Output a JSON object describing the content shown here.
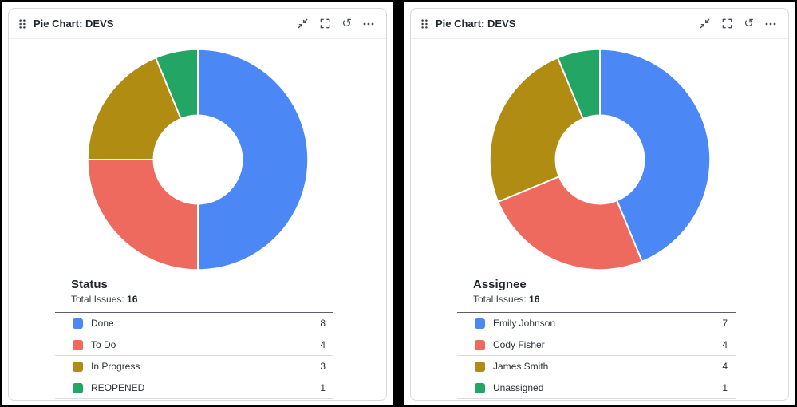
{
  "widgets": [
    {
      "title": "Pie Chart: DEVS",
      "icons": [
        "drag-handle",
        "collapse",
        "fullscreen",
        "refresh",
        "more"
      ]
    },
    {
      "title": "Pie Chart: DEVS",
      "icons": [
        "drag-handle",
        "collapse",
        "fullscreen",
        "refresh",
        "more"
      ]
    }
  ],
  "chart_data": [
    {
      "type": "pie",
      "style": "donut",
      "title": "Status",
      "total_label": "Total Issues:",
      "total": 16,
      "categories": [
        "Done",
        "To Do",
        "In Progress",
        "REOPENED"
      ],
      "values": [
        8,
        4,
        3,
        1
      ],
      "colors": [
        "#4B87F5",
        "#EE6A5F",
        "#B08C13",
        "#23A566"
      ],
      "start_angle": "top",
      "direction": "clockwise",
      "legend_position": "bottom"
    },
    {
      "type": "pie",
      "style": "donut",
      "title": "Assignee",
      "total_label": "Total Issues:",
      "total": 16,
      "categories": [
        "Emily Johnson",
        "Cody Fisher",
        "James Smith",
        "Unassigned"
      ],
      "values": [
        7,
        4,
        4,
        1
      ],
      "colors": [
        "#4B87F5",
        "#EE6A5F",
        "#B08C13",
        "#23A566"
      ],
      "start_angle": "top",
      "direction": "clockwise",
      "legend_position": "bottom"
    }
  ]
}
